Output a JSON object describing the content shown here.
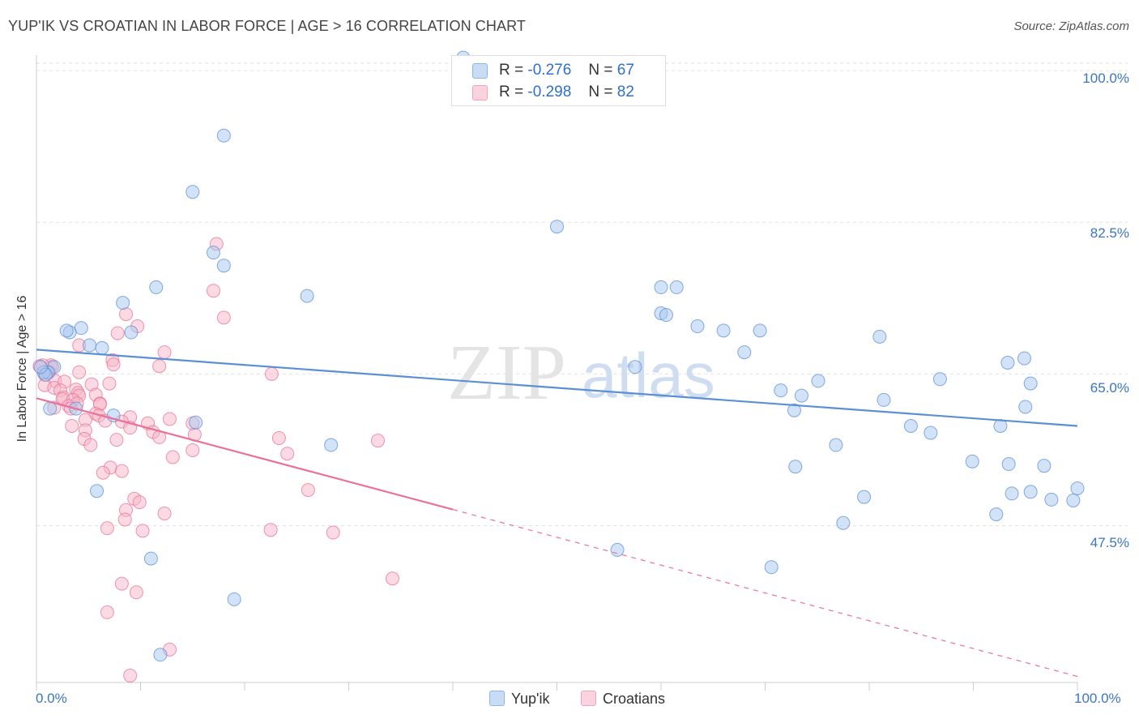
{
  "header": {
    "title": "YUP'IK VS CROATIAN IN LABOR FORCE | AGE > 16 CORRELATION CHART",
    "source": "Source: ZipAtlas.com"
  },
  "watermark": {
    "zip": "ZIP",
    "atlas": "atlas"
  },
  "legend": {
    "rows": [
      {
        "r_label": "R =",
        "r_value": "-0.276",
        "n_label": "N =",
        "n_value": "67",
        "color": "#a8c8f0"
      },
      {
        "r_label": "R =",
        "r_value": "-0.298",
        "n_label": "N =",
        "n_value": "82",
        "color": "#f7b6c8"
      }
    ]
  },
  "bottom_legend": {
    "series1": "Yup'ik",
    "series2": "Croatians"
  },
  "chart_data": {
    "type": "scatter",
    "title": "YUP'IK VS CROATIAN IN LABOR FORCE | AGE > 16 CORRELATION CHART",
    "xlabel": "",
    "ylabel": "In Labor Force | Age > 16",
    "xlim": [
      0,
      100
    ],
    "ylim": [
      29.4,
      101.6
    ],
    "x_tick_labels": [
      "0.0%",
      "100.0%"
    ],
    "y_ticks": [
      47.5,
      65.0,
      82.5,
      100.0
    ],
    "y_tick_labels": [
      "47.5%",
      "65.0%",
      "82.5%",
      "100.0%"
    ],
    "grid": true,
    "series": [
      {
        "name": "Yup'ik",
        "color": "#5b8fd6",
        "fill": "#a8c8f0",
        "trend": {
          "x0": 0,
          "y0": 67.8,
          "x1": 100,
          "y1": 59.0,
          "dashed_from": null
        },
        "points": [
          [
            41,
            101.5
          ],
          [
            18,
            92.5
          ],
          [
            15,
            86
          ],
          [
            50,
            82
          ],
          [
            17,
            79
          ],
          [
            18,
            77.5
          ],
          [
            11.5,
            75
          ],
          [
            26,
            74
          ],
          [
            8.3,
            73.2
          ],
          [
            60,
            75
          ],
          [
            61.5,
            75
          ],
          [
            60,
            72
          ],
          [
            60.5,
            71.8
          ],
          [
            63.5,
            70.5
          ],
          [
            66,
            70
          ],
          [
            69.5,
            70
          ],
          [
            9.1,
            69.8
          ],
          [
            4.3,
            70.3
          ],
          [
            3.2,
            69.8
          ],
          [
            2.9,
            70
          ],
          [
            5.1,
            68.3
          ],
          [
            6.3,
            68
          ],
          [
            81,
            69.3
          ],
          [
            68,
            67.5
          ],
          [
            57.5,
            65.8
          ],
          [
            1.7,
            65.8
          ],
          [
            1.1,
            65.2
          ],
          [
            0.7,
            65.2
          ],
          [
            0.9,
            64.9
          ],
          [
            93.3,
            66.3
          ],
          [
            94.9,
            66.8
          ],
          [
            75.1,
            64.2
          ],
          [
            86.8,
            64.4
          ],
          [
            0.4,
            65.8
          ],
          [
            95.5,
            63.9
          ],
          [
            71.5,
            63.1
          ],
          [
            73.5,
            62.5
          ],
          [
            81.4,
            62
          ],
          [
            1.3,
            61
          ],
          [
            3.8,
            61
          ],
          [
            72.8,
            60.8
          ],
          [
            95,
            61.2
          ],
          [
            7.4,
            60.2
          ],
          [
            15.3,
            59.4
          ],
          [
            84,
            59
          ],
          [
            85.9,
            58.2
          ],
          [
            92.6,
            59
          ],
          [
            28.3,
            56.8
          ],
          [
            76.8,
            56.8
          ],
          [
            72.9,
            54.3
          ],
          [
            89.9,
            54.9
          ],
          [
            93.4,
            54.6
          ],
          [
            96.8,
            54.4
          ],
          [
            5.8,
            51.5
          ],
          [
            79.5,
            50.8
          ],
          [
            100,
            51.8
          ],
          [
            93.7,
            51.2
          ],
          [
            95.5,
            51.4
          ],
          [
            97.5,
            50.5
          ],
          [
            99.6,
            50.4
          ],
          [
            77.5,
            47.8
          ],
          [
            92.2,
            48.8
          ],
          [
            11,
            43.7
          ],
          [
            55.8,
            44.7
          ],
          [
            70.6,
            42.7
          ],
          [
            19,
            39
          ],
          [
            11.9,
            32.6
          ]
        ]
      },
      {
        "name": "Croatians",
        "color": "#e8729a",
        "fill": "#f7b6c8",
        "trend": {
          "x0": 0,
          "y0": 62.2,
          "x1": 100,
          "y1": 30.1,
          "dashed_from": 40
        },
        "points": [
          [
            17.3,
            80
          ],
          [
            17,
            74.6
          ],
          [
            18,
            71.5
          ],
          [
            8.6,
            71.9
          ],
          [
            9.7,
            70.5
          ],
          [
            7.8,
            69.7
          ],
          [
            4.1,
            68.3
          ],
          [
            12.3,
            67.5
          ],
          [
            7.3,
            66.6
          ],
          [
            11.8,
            65.9
          ],
          [
            7.4,
            66.1
          ],
          [
            1.4,
            66
          ],
          [
            1.5,
            65.8
          ],
          [
            0.6,
            66
          ],
          [
            0.3,
            65.9
          ],
          [
            1.2,
            65.2
          ],
          [
            1.1,
            65.1
          ],
          [
            0.8,
            64.9
          ],
          [
            4.1,
            65.2
          ],
          [
            22.6,
            65
          ],
          [
            1.8,
            64.2
          ],
          [
            2.7,
            64.1
          ],
          [
            5.3,
            63.8
          ],
          [
            7,
            63.9
          ],
          [
            0.8,
            63.7
          ],
          [
            3.8,
            63.2
          ],
          [
            1.7,
            63.4
          ],
          [
            2.3,
            63.1
          ],
          [
            4,
            62.8
          ],
          [
            5.7,
            62.6
          ],
          [
            2.6,
            62.3
          ],
          [
            4.1,
            62.5
          ],
          [
            2.5,
            62.1
          ],
          [
            3.5,
            62
          ],
          [
            3.9,
            61.6
          ],
          [
            6.1,
            61.6
          ],
          [
            6.1,
            61.5
          ],
          [
            3.1,
            61.3
          ],
          [
            1.7,
            61.1
          ],
          [
            3.3,
            61
          ],
          [
            5.7,
            60.4
          ],
          [
            6,
            60.2
          ],
          [
            9,
            60
          ],
          [
            12.8,
            59.8
          ],
          [
            4.7,
            59.7
          ],
          [
            6.6,
            59.6
          ],
          [
            8.2,
            59.5
          ],
          [
            15,
            59.3
          ],
          [
            10.7,
            59.3
          ],
          [
            3.4,
            59
          ],
          [
            9,
            58.8
          ],
          [
            4.7,
            58.5
          ],
          [
            11.2,
            58.3
          ],
          [
            15.2,
            58
          ],
          [
            11.8,
            57.7
          ],
          [
            4.6,
            57.5
          ],
          [
            7.7,
            57.4
          ],
          [
            23.3,
            57.6
          ],
          [
            32.8,
            57.3
          ],
          [
            5.2,
            56.8
          ],
          [
            15,
            56.2
          ],
          [
            24.1,
            55.8
          ],
          [
            13.1,
            55.4
          ],
          [
            7.1,
            54.2
          ],
          [
            8.2,
            53.8
          ],
          [
            6.4,
            53.6
          ],
          [
            26.1,
            51.6
          ],
          [
            9.4,
            50.6
          ],
          [
            9.9,
            50.2
          ],
          [
            8.6,
            49.3
          ],
          [
            12.3,
            48.9
          ],
          [
            8.5,
            48.2
          ],
          [
            6.8,
            47.2
          ],
          [
            10.2,
            46.9
          ],
          [
            22.5,
            47
          ],
          [
            28.5,
            46.7
          ],
          [
            34.2,
            41.4
          ],
          [
            8.2,
            40.8
          ],
          [
            9.6,
            39.8
          ],
          [
            6.8,
            37.5
          ],
          [
            12.8,
            33.2
          ],
          [
            9,
            30.2
          ]
        ]
      }
    ]
  }
}
